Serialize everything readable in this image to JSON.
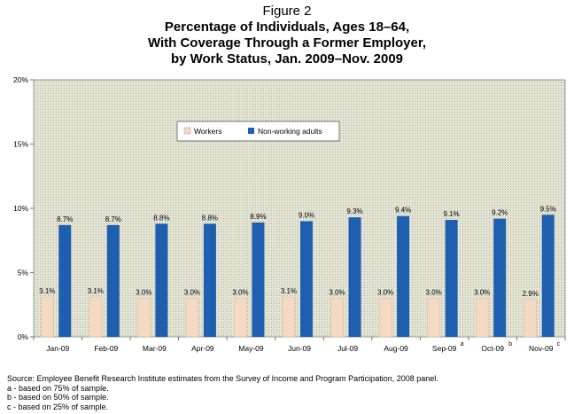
{
  "figure_label": "Figure 2",
  "title_lines": [
    "Percentage of Individuals, Ages 18–64,",
    "With Coverage Through a Former Employer,",
    "by Work Status, Jan. 2009–Nov. 2009"
  ],
  "footer": [
    "Source: Employee Benefit Research Institute estimates from the Survey of Income and Program Participation, 2008 panel.",
    "a - based on 75% of sample.",
    "b - based on 50% of sample.",
    "c - based on 25% of sample."
  ],
  "chart_data": {
    "type": "bar",
    "title": "Percentage of Individuals, Ages 18–64, With Coverage Through a Former Employer, by Work Status, Jan. 2009–Nov. 2009",
    "categories": [
      "Jan-09",
      "Feb-09",
      "Mar-09",
      "Apr-09",
      "May-09",
      "Jun-09",
      "Jul-09",
      "Aug-09",
      "Sep-09",
      "Oct-09",
      "Nov-09"
    ],
    "category_superscripts": [
      "",
      "",
      "",
      "",
      "",
      "",
      "",
      "",
      "a",
      "b",
      "c"
    ],
    "series": [
      {
        "name": "Workers",
        "color": "#f6d9c3",
        "values": [
          3.1,
          3.1,
          3.0,
          3.0,
          3.0,
          3.1,
          3.0,
          3.0,
          3.0,
          3.0,
          2.9
        ],
        "labels": [
          "3.1%",
          "3.1%",
          "3.0%",
          "3.0%",
          "3.0%",
          "3.1%",
          "3.0%",
          "3.0%",
          "3.0%",
          "3.0%",
          "2.9%"
        ]
      },
      {
        "name": "Non-working adults",
        "color": "#1f5fb0",
        "values": [
          8.7,
          8.7,
          8.8,
          8.8,
          8.9,
          9.0,
          9.3,
          9.4,
          9.1,
          9.2,
          9.5
        ],
        "labels": [
          "8.7%",
          "8.7%",
          "8.8%",
          "8.8%",
          "8.9%",
          "9.0%",
          "9.3%",
          "9.4%",
          "9.1%",
          "9.2%",
          "9.5%"
        ]
      }
    ],
    "ylim": [
      0,
      20
    ],
    "yticks": [
      0,
      5,
      10,
      15,
      20
    ],
    "ytick_labels": [
      "0%",
      "5%",
      "10%",
      "15%",
      "20%"
    ],
    "grid": false,
    "legend_position": "top-center",
    "background_pattern": "dotted-gray"
  }
}
